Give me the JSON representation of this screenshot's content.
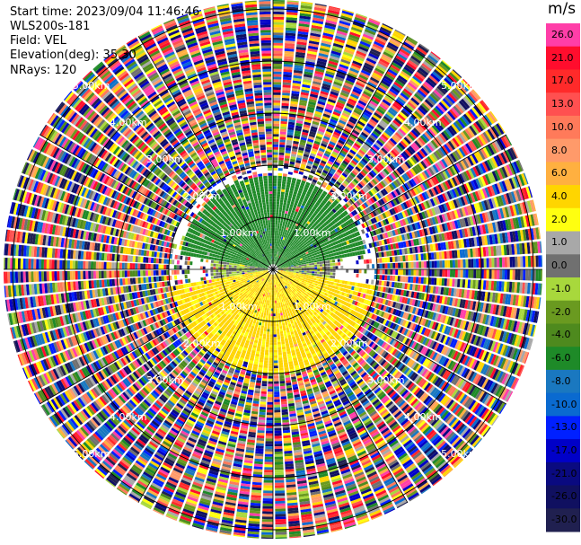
{
  "header": {
    "start_time": "Start time: 2023/09/04 11:46:46",
    "instrument": "WLS200s-181",
    "field": "Field: VEL",
    "elevation": "Elevation(deg): 35.30",
    "nrays": "NRays: 120"
  },
  "colorbar": {
    "unit": "m/s",
    "labels": [
      "26.0",
      "21.0",
      "17.0",
      "13.0",
      "10.0",
      "8.0",
      "6.0",
      "4.0",
      "2.0",
      "1.0",
      "0.0",
      "-1.0",
      "-2.0",
      "-4.0",
      "-6.0",
      "-8.0",
      "-10.0",
      "-13.0",
      "-17.0",
      "-21.0",
      "-26.0",
      "-30.0"
    ],
    "colors": [
      "#ff3ea8",
      "#ff0d2d",
      "#ff2a2a",
      "#ff5050",
      "#ff7a5a",
      "#ff9a6a",
      "#ffb040",
      "#ffd500",
      "#ffff10",
      "#a8a8a8",
      "#707070",
      "#a8d83c",
      "#6a9a20",
      "#4e8a1e",
      "#1e8a28",
      "#1a78c0",
      "#0a6ad0",
      "#0020ff",
      "#0000c8",
      "#0a0a80",
      "#101060",
      "#202050"
    ]
  },
  "chart_data": {
    "type": "heatmap",
    "field": "VEL",
    "unit": "m/s",
    "elevation_deg": 35.3,
    "n_rays": 120,
    "range_rings_km": [
      1.0,
      2.0,
      3.0,
      4.0,
      5.0
    ],
    "ring_labels": [
      "1.00km",
      "2.00km",
      "3.00km",
      "4.00km",
      "5.00km"
    ],
    "color_scale": [
      -30.0,
      -26.0,
      -21.0,
      -17.0,
      -13.0,
      -10.0,
      -8.0,
      -6.0,
      -4.0,
      -2.0,
      -1.0,
      0.0,
      1.0,
      2.0,
      4.0,
      6.0,
      8.0,
      10.0,
      13.0,
      17.0,
      21.0,
      26.0
    ],
    "valid_data_max_range_km": 2.0,
    "sectors": [
      {
        "azimuth_range_deg": [
          280,
          80
        ],
        "range_km": [
          0.0,
          1.8
        ],
        "velocity_ms": -5.0
      },
      {
        "azimuth_range_deg": [
          100,
          260
        ],
        "range_km": [
          0.0,
          2.0
        ],
        "velocity_ms": 4.5
      },
      {
        "azimuth_range_deg": [
          80,
          100
        ],
        "range_km": [
          0.0,
          1.2
        ],
        "velocity_ms": 0.0
      },
      {
        "azimuth_range_deg": [
          260,
          280
        ],
        "range_km": [
          0.0,
          1.2
        ],
        "velocity_ms": 0.0
      }
    ],
    "noise_range_km": [
      2.0,
      6.2
    ]
  }
}
